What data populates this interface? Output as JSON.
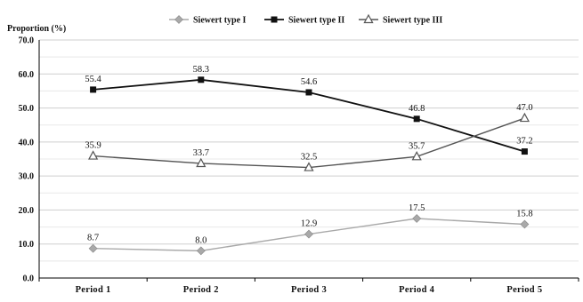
{
  "chart_data": {
    "type": "line",
    "title": "",
    "xlabel": "",
    "ylabel": "Proportion (%)",
    "ylim": [
      0,
      70
    ],
    "y_ticks": [
      "0.0",
      "10.0",
      "20.0",
      "30.0",
      "40.0",
      "50.0",
      "60.0",
      "70.0"
    ],
    "categories": [
      "Period 1",
      "Period 2",
      "Period 3",
      "Period 4",
      "Period 5"
    ],
    "grid": true,
    "legend_position": "top",
    "series": [
      {
        "name": "Siewert type I",
        "marker": "diamond",
        "color": "#a9a9a9",
        "values": [
          8.7,
          8.0,
          12.9,
          17.5,
          15.8
        ],
        "labels": [
          "8.7",
          "8.0",
          "12.9",
          "17.5",
          "15.8"
        ]
      },
      {
        "name": "Siewert type II",
        "marker": "square",
        "color": "#111111",
        "values": [
          55.4,
          58.3,
          54.6,
          46.8,
          37.2
        ],
        "labels": [
          "55.4",
          "58.3",
          "54.6",
          "46.8",
          "37.2"
        ]
      },
      {
        "name": "Siewert type III",
        "marker": "triangle",
        "color": "#555555",
        "values": [
          35.9,
          33.7,
          32.5,
          35.7,
          47.0
        ],
        "labels": [
          "35.9",
          "33.7",
          "32.5",
          "35.7",
          "47.0"
        ]
      }
    ]
  }
}
